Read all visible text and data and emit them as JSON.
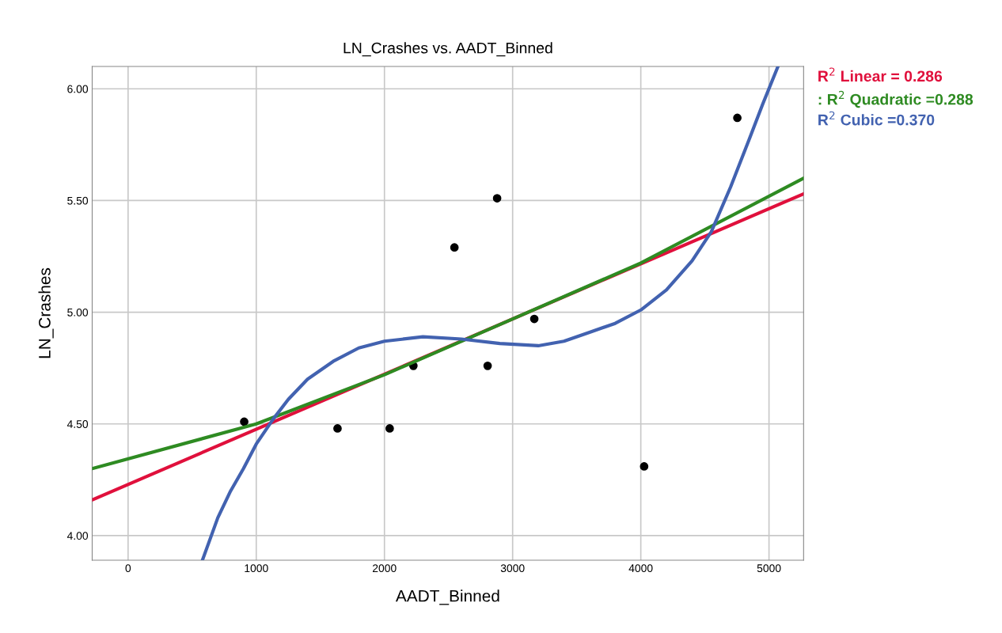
{
  "chart_data": {
    "type": "scatter",
    "title": "LN_Crashes vs. AADT_Binned",
    "xlabel": "AADT_Binned",
    "ylabel": "LN_Crashes",
    "xlim": [
      -280,
      5270
    ],
    "xticks": [
      0,
      1000,
      2000,
      3000,
      4000,
      5000
    ],
    "ylim": [
      3.89,
      6.1
    ],
    "yticks": [
      {
        "value": 4,
        "label": "4.00"
      },
      {
        "value": 4.5,
        "label": "4.50"
      },
      {
        "value": 5,
        "label": "5.00"
      },
      {
        "value": 5.5,
        "label": "5.50"
      },
      {
        "value": 6,
        "label": "6.00"
      }
    ],
    "grid": true,
    "legend": "top right",
    "x": [
      906,
      1634,
      2041,
      2226,
      2546,
      2805,
      2879,
      3169,
      4026,
      4753
    ],
    "series": [
      {
        "color": "#000000",
        "marker": "circle",
        "values": [
          4.51,
          4.48,
          4.48,
          4.76,
          5.29,
          4.76,
          5.51,
          4.97,
          4.31,
          5.87
        ]
      },
      {
        "type": "line",
        "name": "R$^{2}$ Linear = 0.286",
        "color": "#e0103c",
        "x": [
          -280,
          5270
        ],
        "values": [
          4.16,
          5.53
        ]
      },
      {
        "type": "line",
        "name": ": R$^{2}$ Quadratic =0.288",
        "color": "#2e8b22",
        "x": [
          -280,
          1000,
          2000,
          3000,
          4000,
          5270
        ],
        "values": [
          4.3,
          4.5,
          4.72,
          4.97,
          5.22,
          5.6
        ]
      },
      {
        "type": "line",
        "name": "R$^{2}$ Cubic =0.370",
        "color": "#4262b0",
        "x": [
          580,
          700,
          800,
          900,
          1000,
          1130,
          1250,
          1400,
          1600,
          1800,
          2000,
          2300,
          2600,
          2900,
          3200,
          3400,
          3600,
          3800,
          4000,
          4200,
          4400,
          4550,
          4700,
          4850,
          4950,
          5070
        ],
        "values": [
          3.89,
          4.08,
          4.2,
          4.3,
          4.41,
          4.52,
          4.61,
          4.7,
          4.78,
          4.84,
          4.87,
          4.89,
          4.88,
          4.86,
          4.85,
          4.87,
          4.91,
          4.95,
          5.01,
          5.1,
          5.23,
          5.36,
          5.56,
          5.78,
          5.93,
          6.1
        ]
      }
    ]
  }
}
